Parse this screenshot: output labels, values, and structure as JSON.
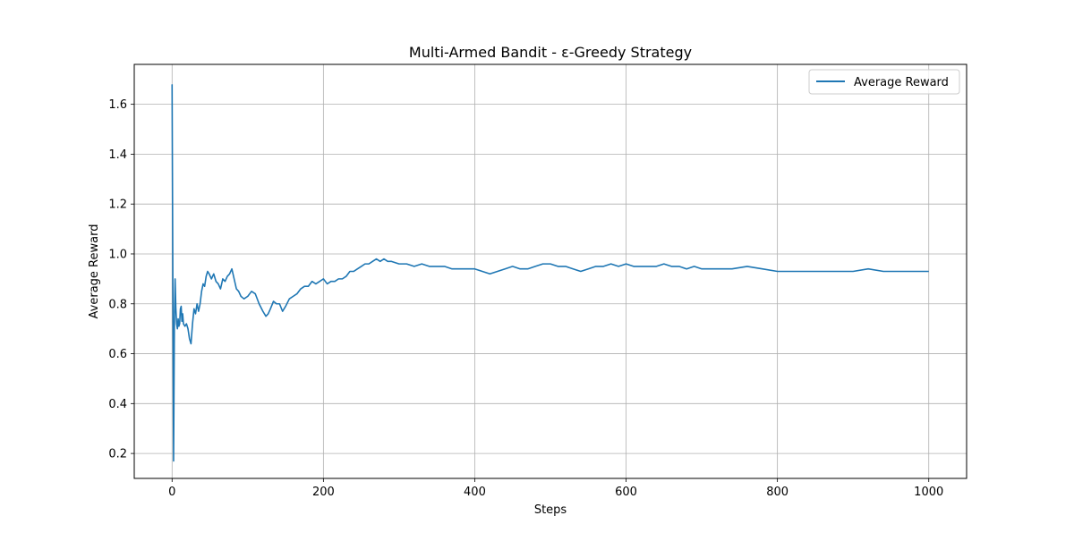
{
  "chart_data": {
    "type": "line",
    "title": "Multi-Armed Bandit - ε-Greedy Strategy",
    "xlabel": "Steps",
    "ylabel": "Average Reward",
    "xlim": [
      -50,
      1050
    ],
    "ylim": [
      0.1,
      1.76
    ],
    "xticks": [
      0,
      200,
      400,
      600,
      800,
      1000
    ],
    "yticks": [
      0.2,
      0.4,
      0.6,
      0.8,
      1.0,
      1.2,
      1.4,
      1.6
    ],
    "grid": true,
    "legend_position": "top-right",
    "series": [
      {
        "name": "Average Reward",
        "color": "#1f77b4",
        "x": [
          0,
          1,
          2,
          3,
          4,
          5,
          6,
          7,
          8,
          9,
          10,
          11,
          12,
          13,
          14,
          15,
          17,
          19,
          21,
          23,
          25,
          27,
          29,
          31,
          33,
          35,
          37,
          39,
          41,
          43,
          45,
          47,
          49,
          52,
          55,
          58,
          61,
          64,
          67,
          70,
          73,
          76,
          79,
          82,
          85,
          88,
          91,
          95,
          100,
          105,
          110,
          115,
          120,
          124,
          127,
          130,
          134,
          138,
          142,
          146,
          150,
          155,
          160,
          165,
          170,
          175,
          180,
          185,
          190,
          195,
          200,
          205,
          210,
          215,
          220,
          225,
          230,
          235,
          240,
          245,
          250,
          255,
          260,
          265,
          270,
          275,
          280,
          285,
          290,
          300,
          310,
          320,
          330,
          340,
          350,
          360,
          370,
          380,
          390,
          400,
          410,
          420,
          430,
          440,
          450,
          460,
          470,
          480,
          490,
          500,
          510,
          520,
          530,
          540,
          550,
          560,
          570,
          580,
          590,
          600,
          610,
          620,
          630,
          640,
          650,
          660,
          670,
          680,
          690,
          700,
          720,
          740,
          760,
          780,
          800,
          820,
          840,
          860,
          880,
          900,
          920,
          940,
          960,
          980,
          1000
        ],
        "values": [
          1.68,
          0.9,
          0.17,
          0.7,
          0.9,
          0.78,
          0.72,
          0.7,
          0.74,
          0.71,
          0.72,
          0.78,
          0.79,
          0.73,
          0.76,
          0.72,
          0.71,
          0.72,
          0.7,
          0.66,
          0.64,
          0.72,
          0.78,
          0.76,
          0.8,
          0.77,
          0.8,
          0.85,
          0.88,
          0.87,
          0.91,
          0.93,
          0.92,
          0.9,
          0.92,
          0.89,
          0.88,
          0.86,
          0.9,
          0.89,
          0.91,
          0.92,
          0.94,
          0.9,
          0.86,
          0.85,
          0.83,
          0.82,
          0.83,
          0.85,
          0.84,
          0.8,
          0.77,
          0.75,
          0.76,
          0.78,
          0.81,
          0.8,
          0.8,
          0.77,
          0.79,
          0.82,
          0.83,
          0.84,
          0.86,
          0.87,
          0.87,
          0.89,
          0.88,
          0.89,
          0.9,
          0.88,
          0.89,
          0.89,
          0.9,
          0.9,
          0.91,
          0.93,
          0.93,
          0.94,
          0.95,
          0.96,
          0.96,
          0.97,
          0.98,
          0.97,
          0.98,
          0.97,
          0.97,
          0.96,
          0.96,
          0.95,
          0.96,
          0.95,
          0.95,
          0.95,
          0.94,
          0.94,
          0.94,
          0.94,
          0.93,
          0.92,
          0.93,
          0.94,
          0.95,
          0.94,
          0.94,
          0.95,
          0.96,
          0.96,
          0.95,
          0.95,
          0.94,
          0.93,
          0.94,
          0.95,
          0.95,
          0.96,
          0.95,
          0.96,
          0.95,
          0.95,
          0.95,
          0.95,
          0.96,
          0.95,
          0.95,
          0.94,
          0.95,
          0.94,
          0.94,
          0.94,
          0.95,
          0.94,
          0.93,
          0.93,
          0.93,
          0.93,
          0.93,
          0.93,
          0.94,
          0.93,
          0.93,
          0.93,
          0.93
        ]
      }
    ]
  }
}
